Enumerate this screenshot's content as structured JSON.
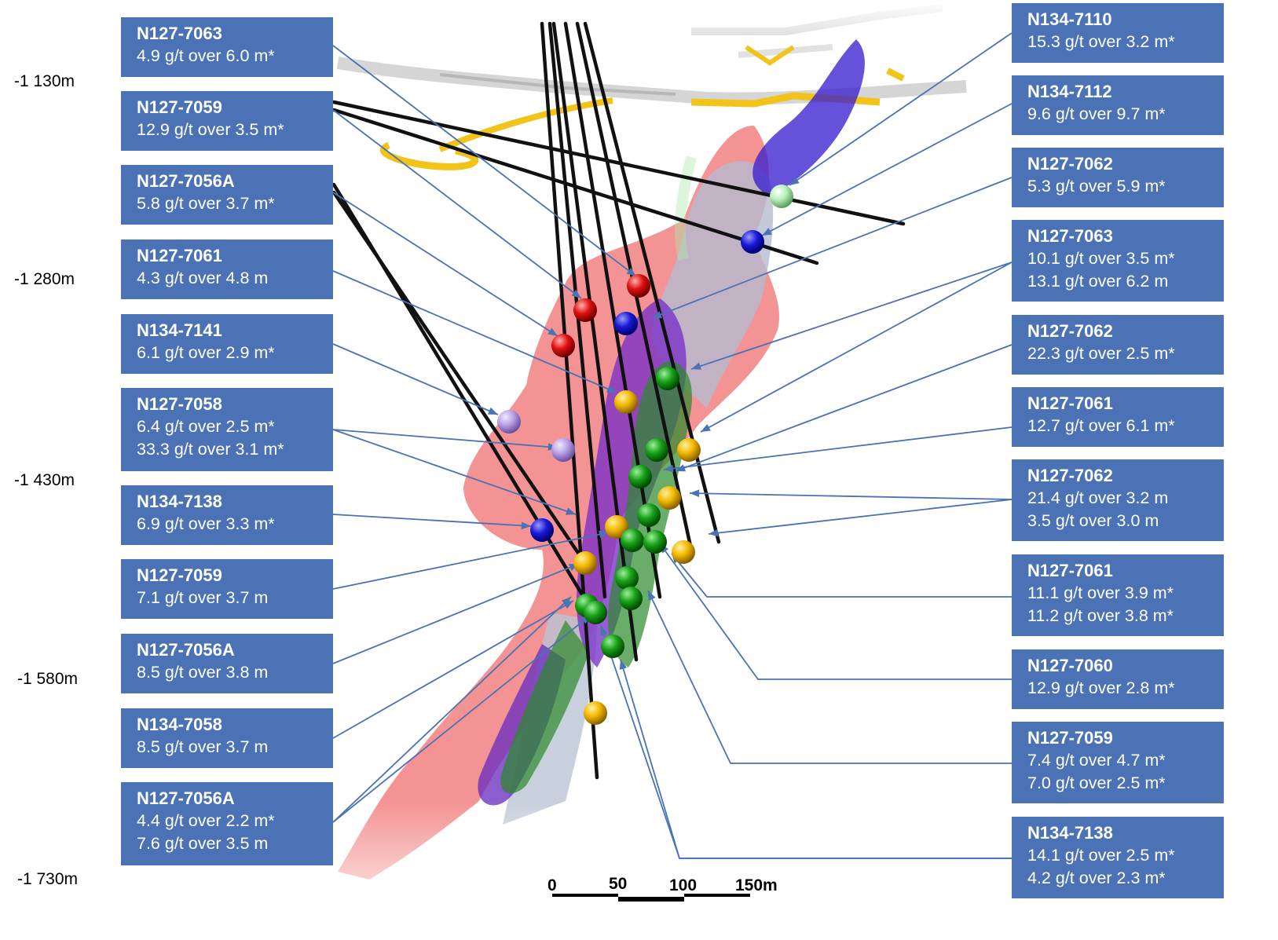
{
  "depth_labels": [
    "-1 130m",
    "-1 280m",
    "-1 430m",
    "-1 580m",
    "-1 730m"
  ],
  "left_callouts": [
    {
      "title": "N127-7063",
      "lines": [
        "4.9 g/t over 6.0 m*"
      ]
    },
    {
      "title": "N127-7059",
      "lines": [
        "12.9 g/t over 3.5 m*"
      ]
    },
    {
      "title": "N127-7056A",
      "lines": [
        "5.8 g/t over 3.7 m*"
      ]
    },
    {
      "title": "N127-7061",
      "lines": [
        "4.3 g/t over 4.8 m"
      ]
    },
    {
      "title": "N134-7141",
      "lines": [
        "6.1 g/t over 2.9 m*"
      ]
    },
    {
      "title": "N127-7058",
      "lines": [
        "6.4 g/t over 2.5 m*",
        "33.3 g/t over 3.1 m*"
      ]
    },
    {
      "title": "N134-7138",
      "lines": [
        "6.9 g/t over 3.3 m*"
      ]
    },
    {
      "title": "N127-7059",
      "lines": [
        "7.1 g/t over 3.7 m"
      ]
    },
    {
      "title": "N127-7056A",
      "lines": [
        "8.5 g/t over 3.8 m"
      ]
    },
    {
      "title": "N134-7058",
      "lines": [
        "8.5 g/t over 3.7 m"
      ]
    },
    {
      "title": "N127-7056A",
      "lines": [
        "4.4 g/t over 2.2 m*",
        "7.6 g/t over 3.5 m"
      ]
    }
  ],
  "right_callouts": [
    {
      "title": "N134-7110",
      "lines": [
        "15.3 g/t over 3.2 m*"
      ]
    },
    {
      "title": "N134-7112",
      "lines": [
        "9.6 g/t over 9.7 m*"
      ]
    },
    {
      "title": "N127-7062",
      "lines": [
        "5.3 g/t over 5.9 m*"
      ]
    },
    {
      "title": "N127-7063",
      "lines": [
        "10.1 g/t over 3.5 m*",
        "13.1 g/t over 6.2 m"
      ]
    },
    {
      "title": "N127-7062",
      "lines": [
        "22.3 g/t over 2.5 m*"
      ]
    },
    {
      "title": "N127-7061",
      "lines": [
        "12.7 g/t over 6.1 m*"
      ]
    },
    {
      "title": "N127-7062",
      "lines": [
        "21.4 g/t over 3.2 m",
        "3.5 g/t over 3.0 m"
      ]
    },
    {
      "title": "N127-7061",
      "lines": [
        "11.1 g/t over 3.9 m*",
        "11.2 g/t over 3.8 m*"
      ]
    },
    {
      "title": "N127-7060",
      "lines": [
        "12.9 g/t over 2.8 m*"
      ]
    },
    {
      "title": "N127-7059",
      "lines": [
        "7.4 g/t over 4.7 m*",
        "7.0 g/t over 2.5 m*"
      ]
    },
    {
      "title": "N134-7138",
      "lines": [
        "14.1 g/t over 2.5 m*",
        "4.2 g/t over 2.3 m*"
      ]
    }
  ],
  "scale_bar": {
    "ticks": [
      "0",
      "50",
      "100",
      "150m"
    ]
  },
  "colors": {
    "callout_bg": "#4a72b5",
    "leader": "#4a72b5",
    "zone_red": "#f07a7a",
    "zone_purple": "#7a40c8",
    "zone_green": "#3a9a3a",
    "zone_grey": "#b4bcd0",
    "workings_yellow": "#f2c41a",
    "drill_hole": "#111111",
    "marker_red": "#e01010",
    "marker_blue": "#1a1ad8",
    "marker_green": "#18a018",
    "marker_yellow": "#f2b800",
    "marker_lavender": "#b9a0e6",
    "marker_lightgreen": "#b8f0b8"
  }
}
